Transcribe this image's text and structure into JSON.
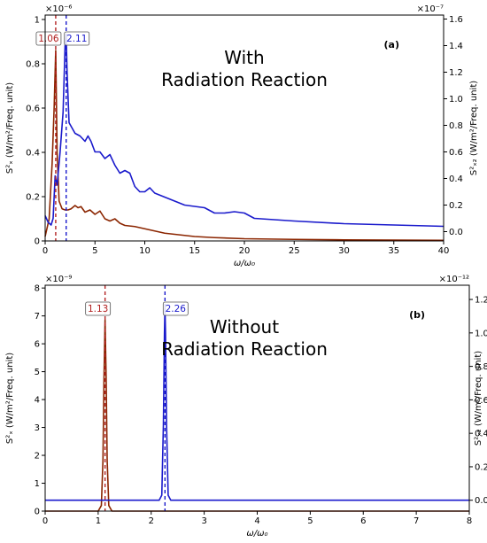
{
  "chart_data": [
    {
      "type": "line",
      "panel_label": "(a)",
      "annotation": [
        "With",
        "Radiation Reaction"
      ],
      "xlabel": "ω/ω₀",
      "ylabel_left": "S²ₓ (W/m²/Freq. unit)",
      "ylabel_right": "S²ₓ₂ (W/m²/Freq. unit)",
      "left_axis_multiplier": "×10⁻⁶",
      "right_axis_multiplier": "×10⁻⁷",
      "xlim": [
        0,
        40
      ],
      "ylim_left": [
        0,
        1.02
      ],
      "ylim_right": [
        -0.07,
        1.63
      ],
      "x_ticks": [
        0,
        5,
        10,
        15,
        20,
        25,
        30,
        35,
        40
      ],
      "y_ticks_left": [
        0.0,
        0.2,
        0.4,
        0.6,
        0.8,
        1.0
      ],
      "y_ticks_right": [
        0.0,
        0.2,
        0.4,
        0.6,
        0.8,
        1.0,
        1.2,
        1.4,
        1.6
      ],
      "peak_markers": [
        {
          "x": 1.06,
          "label": "1.06",
          "color": "#b22222"
        },
        {
          "x": 2.11,
          "label": "2.11",
          "color": "#1a1acc"
        }
      ],
      "series": [
        {
          "axis": "left",
          "color": "#8b2500",
          "x": [
            0,
            0.4,
            0.7,
            0.9,
            1.06,
            1.2,
            1.4,
            1.7,
            2.0,
            2.3,
            2.6,
            3.0,
            3.3,
            3.6,
            4.0,
            4.5,
            5.0,
            5.5,
            6.0,
            6.5,
            7.0,
            7.5,
            8.0,
            9.0,
            10.0,
            11.0,
            12.0,
            13.0,
            14.0,
            15.0,
            17.0,
            20.0,
            25.0,
            30.0,
            35.0,
            40.0
          ],
          "y": [
            0.02,
            0.1,
            0.35,
            0.6,
            0.86,
            0.4,
            0.18,
            0.145,
            0.14,
            0.14,
            0.145,
            0.16,
            0.15,
            0.155,
            0.13,
            0.14,
            0.12,
            0.135,
            0.1,
            0.09,
            0.1,
            0.08,
            0.07,
            0.065,
            0.055,
            0.045,
            0.035,
            0.03,
            0.025,
            0.02,
            0.015,
            0.01,
            0.007,
            0.005,
            0.004,
            0.003
          ]
        },
        {
          "axis": "right",
          "color": "#1a1acc",
          "x": [
            0,
            0.3,
            0.6,
            0.8,
            1.0,
            1.2,
            1.5,
            1.8,
            2.0,
            2.11,
            2.2,
            2.4,
            2.7,
            3.0,
            3.5,
            4.0,
            4.3,
            4.6,
            5.0,
            5.5,
            6.0,
            6.5,
            7.0,
            7.5,
            8.0,
            8.5,
            9.0,
            9.5,
            10.0,
            10.5,
            11.0,
            12.0,
            13.0,
            14.0,
            15.0,
            16.0,
            17.0,
            18.0,
            19.0,
            20.0,
            21.0,
            23.0,
            25.0,
            30.0,
            35.0,
            40.0
          ],
          "y": [
            0.12,
            0.07,
            0.05,
            0.1,
            0.42,
            0.35,
            0.6,
            0.9,
            1.4,
            1.48,
            1.2,
            0.82,
            0.78,
            0.74,
            0.72,
            0.68,
            0.72,
            0.68,
            0.6,
            0.6,
            0.55,
            0.58,
            0.5,
            0.44,
            0.46,
            0.44,
            0.34,
            0.3,
            0.3,
            0.33,
            0.29,
            0.26,
            0.23,
            0.2,
            0.19,
            0.18,
            0.14,
            0.14,
            0.15,
            0.14,
            0.1,
            0.09,
            0.08,
            0.06,
            0.05,
            0.04
          ]
        }
      ]
    },
    {
      "type": "line",
      "panel_label": "(b)",
      "annotation": [
        "Without",
        "Radiation Reaction"
      ],
      "xlabel": "ω/ω₀",
      "ylabel_left": "S²ₓ (W/m²/Freq. unit)",
      "ylabel_right": "S²ₓ₂ (W/m²/Freq. unit)",
      "left_axis_multiplier": "×10⁻⁹",
      "right_axis_multiplier": "×10⁻¹²",
      "xlim": [
        0,
        8
      ],
      "ylim_left": [
        0,
        8.1
      ],
      "ylim_right": [
        -0.065,
        1.285
      ],
      "x_ticks": [
        0,
        1,
        2,
        3,
        4,
        5,
        6,
        7,
        8
      ],
      "y_ticks_left": [
        0,
        1,
        2,
        3,
        4,
        5,
        6,
        7,
        8
      ],
      "y_ticks_right": [
        0.0,
        0.2,
        0.4,
        0.6,
        0.8,
        1.0,
        1.2
      ],
      "peak_markers": [
        {
          "x": 1.13,
          "label": "1.13",
          "color": "#b22222"
        },
        {
          "x": 2.26,
          "label": "2.26",
          "color": "#1a1acc"
        }
      ],
      "series": [
        {
          "axis": "left",
          "color": "#8b2500",
          "x": [
            0,
            1.0,
            1.06,
            1.09,
            1.11,
            1.13,
            1.15,
            1.17,
            1.2,
            1.26,
            8.0
          ],
          "y": [
            0,
            0,
            0.2,
            1.8,
            4.8,
            6.85,
            4.8,
            1.8,
            0.2,
            0,
            0
          ]
        },
        {
          "axis": "right",
          "color": "#1a1acc",
          "x": [
            0,
            2.15,
            2.2,
            2.23,
            2.25,
            2.26,
            2.27,
            2.29,
            2.32,
            2.37,
            8.0
          ],
          "y": [
            0.0,
            0.0,
            0.03,
            0.45,
            1.0,
            1.15,
            1.0,
            0.45,
            0.03,
            0.0,
            0.0
          ]
        }
      ]
    }
  ]
}
